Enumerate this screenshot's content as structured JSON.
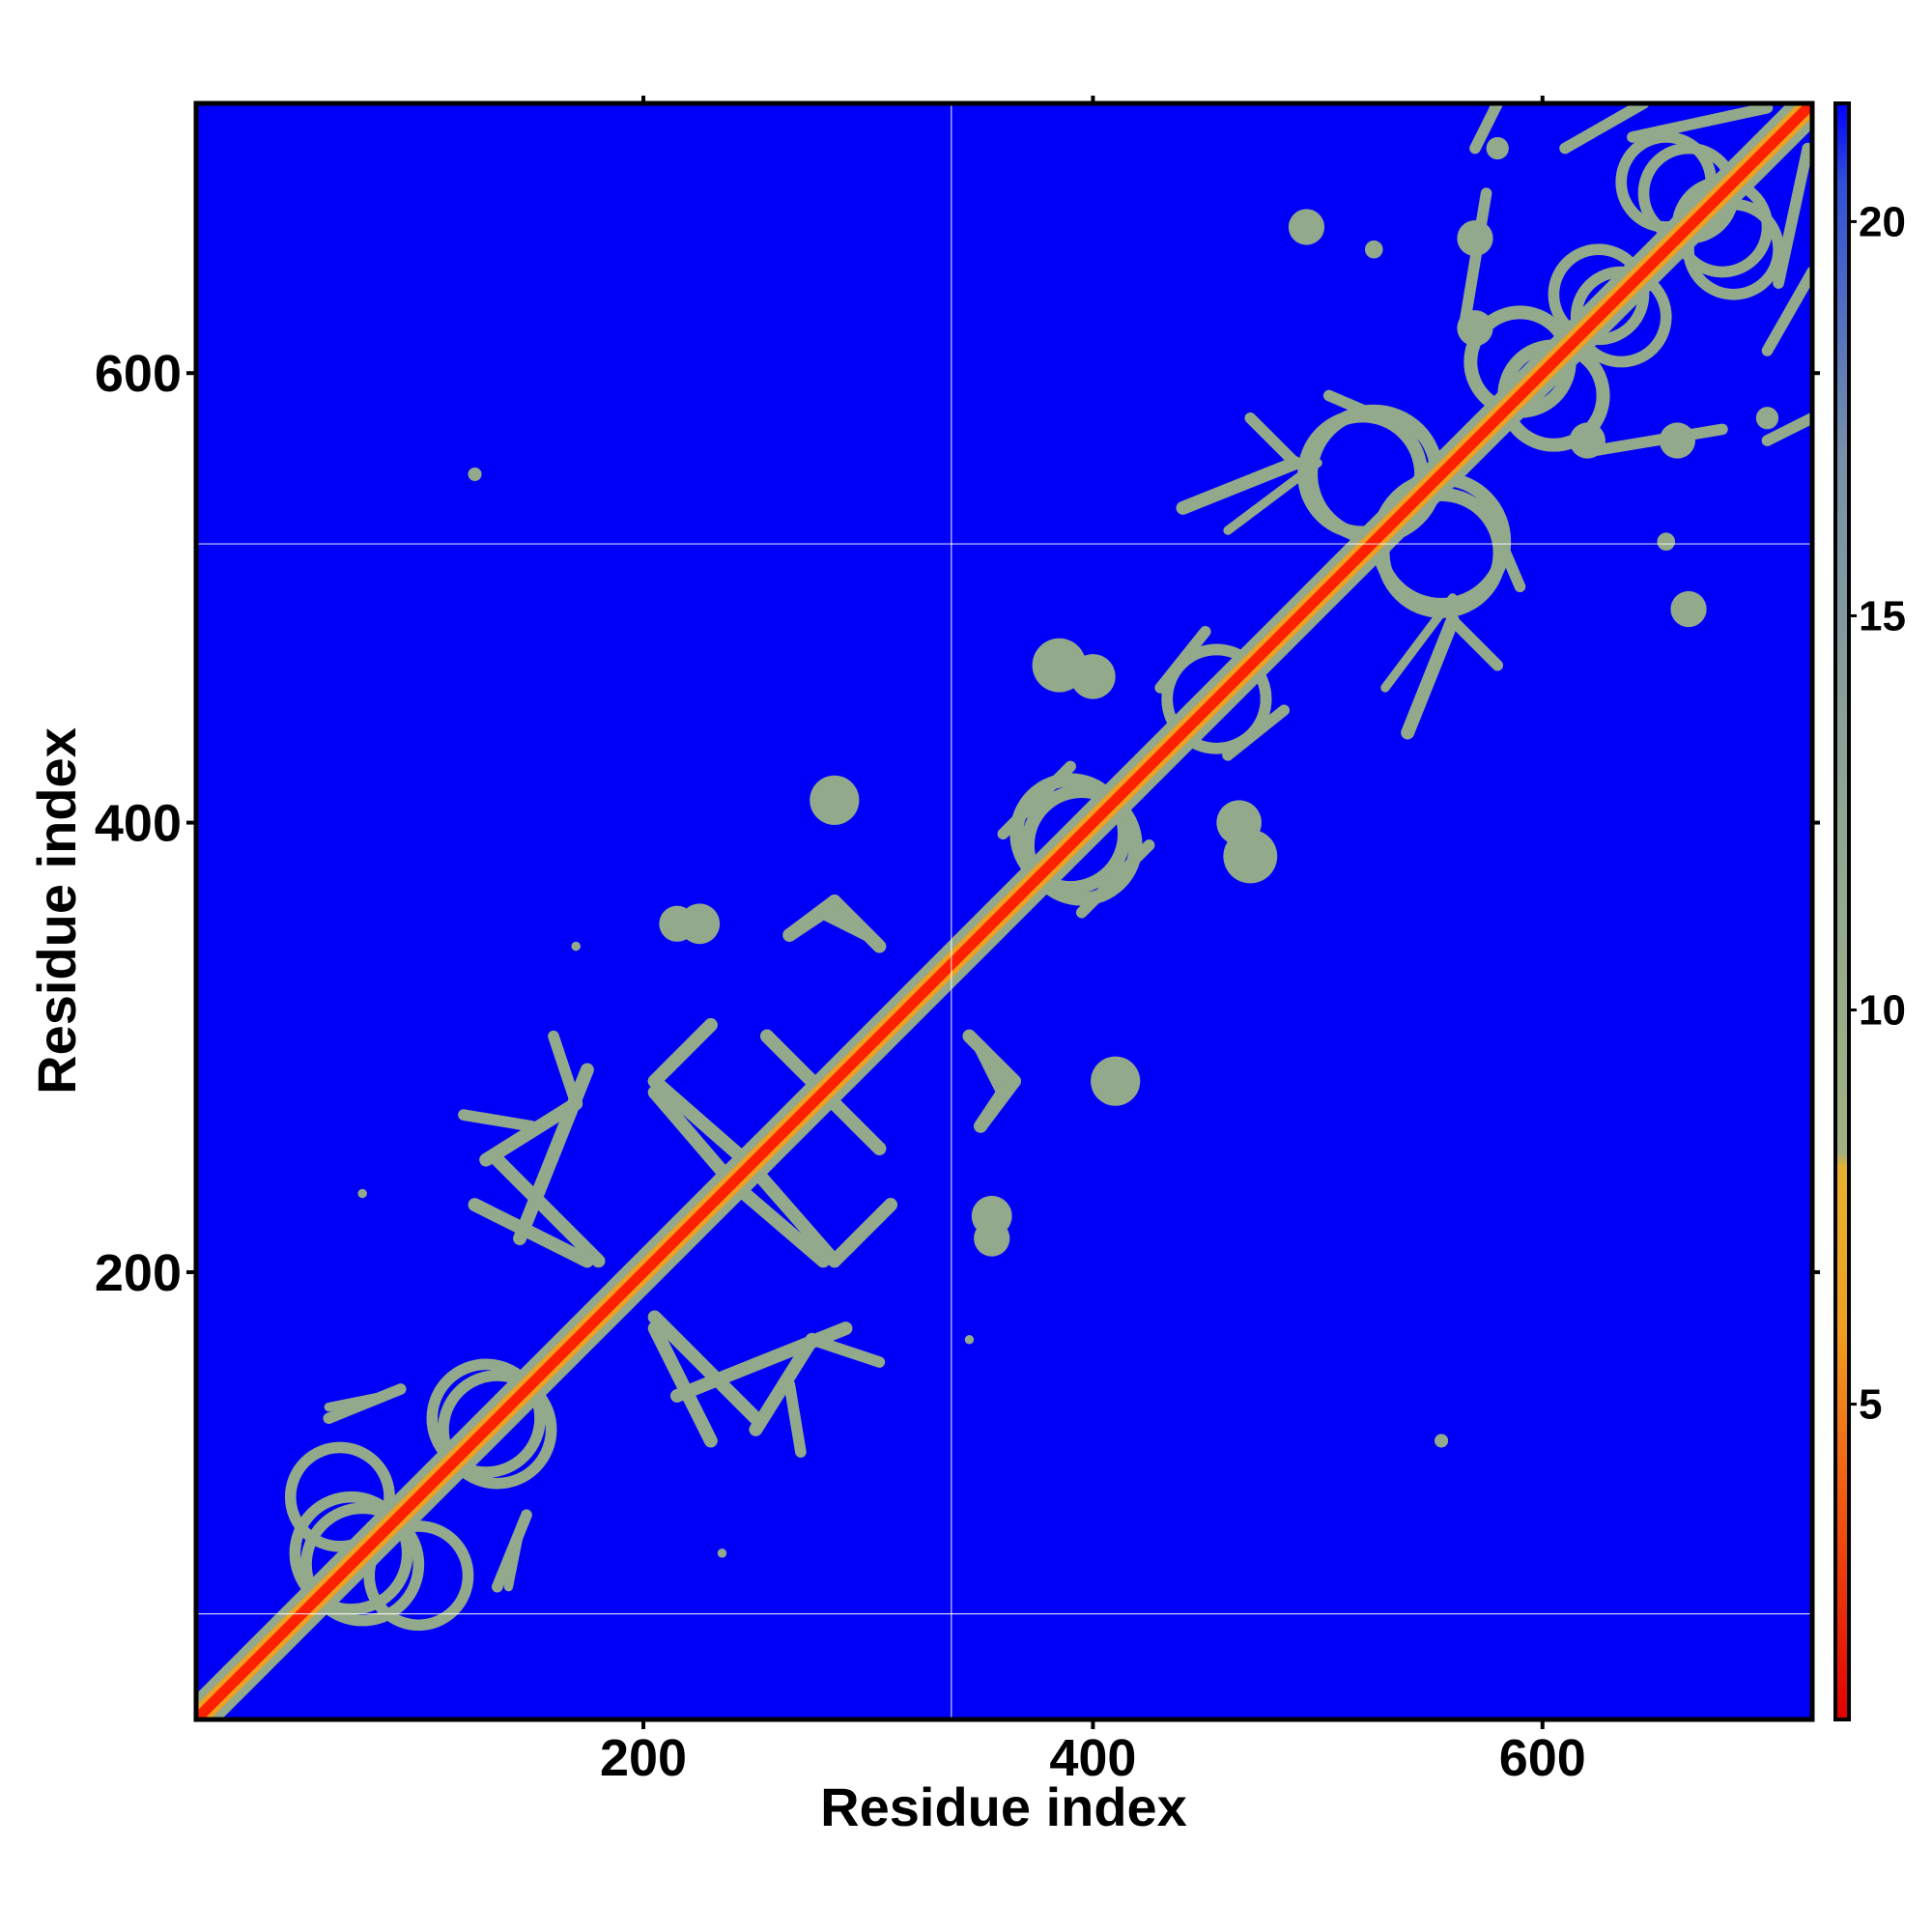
{
  "chart_data": {
    "type": "heatmap",
    "title": "",
    "xlabel": "Residue index",
    "ylabel": "Residue index",
    "xlim": [
      1,
      720
    ],
    "ylim": [
      1,
      720
    ],
    "x_ticks": [
      200,
      400,
      600
    ],
    "y_ticks": [
      200,
      400,
      600
    ],
    "x_tick_labels": [
      "200",
      "400",
      "600"
    ],
    "y_tick_labels": [
      "200",
      "400",
      "600"
    ],
    "colorbar": {
      "range": [
        1,
        21.5
      ],
      "ticks": [
        5,
        10,
        15,
        20
      ],
      "tick_labels": [
        "5",
        "10",
        "15",
        "20"
      ],
      "stops": [
        {
          "value": 1,
          "color": "#e00000"
        },
        {
          "value": 3.5,
          "color": "#f05010"
        },
        {
          "value": 6,
          "color": "#f0a020"
        },
        {
          "value": 8,
          "color": "#e8b030"
        },
        {
          "value": 8.2,
          "color": "#a0b080"
        },
        {
          "value": 12,
          "color": "#90a890"
        },
        {
          "value": 17,
          "color": "#7890a8"
        },
        {
          "value": 20.5,
          "color": "#3050d8"
        },
        {
          "value": 21.5,
          "color": "#0000ff"
        }
      ]
    },
    "background_color": "#0000f8",
    "contact_color": "#93a98b",
    "core_color": "#ff2000",
    "reference_lines": {
      "x": [
        337
      ],
      "y": [
        48,
        524
      ]
    },
    "diagonal_band_halfwidth": 8,
    "contact_features": [
      {
        "kind": "ring",
        "cx": 70,
        "cy": 75,
        "r": 25,
        "thickness": 5
      },
      {
        "kind": "ring",
        "cx": 100,
        "cy": 65,
        "r": 22,
        "thickness": 5
      },
      {
        "kind": "ring",
        "cx": 130,
        "cy": 135,
        "r": 24,
        "thickness": 5
      },
      {
        "kind": "segment",
        "x1": 135,
        "y1": 60,
        "x2": 148,
        "y2": 92,
        "thickness": 5
      },
      {
        "kind": "segment",
        "x1": 60,
        "y1": 140,
        "x2": 85,
        "y2": 145,
        "thickness": 4
      },
      {
        "kind": "segment",
        "x1": 145,
        "y1": 215,
        "x2": 175,
        "y2": 290,
        "thickness": 6
      },
      {
        "kind": "segment",
        "x1": 135,
        "y1": 250,
        "x2": 180,
        "y2": 205,
        "thickness": 6
      },
      {
        "kind": "segment",
        "x1": 120,
        "y1": 270,
        "x2": 150,
        "y2": 265,
        "thickness": 5
      },
      {
        "kind": "segment",
        "x1": 205,
        "y1": 175,
        "x2": 230,
        "y2": 125,
        "thickness": 6
      },
      {
        "kind": "segment",
        "x1": 250,
        "y1": 130,
        "x2": 275,
        "y2": 170,
        "thickness": 6
      },
      {
        "kind": "segment",
        "x1": 275,
        "y1": 170,
        "x2": 305,
        "y2": 160,
        "thickness": 5
      },
      {
        "kind": "segment",
        "x1": 205,
        "y1": 280,
        "x2": 235,
        "y2": 245,
        "thickness": 6
      },
      {
        "kind": "segment",
        "x1": 210,
        "y1": 290,
        "x2": 230,
        "y2": 310,
        "thickness": 6
      },
      {
        "kind": "segment",
        "x1": 250,
        "y1": 245,
        "x2": 285,
        "y2": 205,
        "thickness": 6
      },
      {
        "kind": "segment",
        "x1": 285,
        "y1": 205,
        "x2": 310,
        "y2": 230,
        "thickness": 6
      },
      {
        "kind": "segment",
        "x1": 255,
        "y1": 305,
        "x2": 305,
        "y2": 255,
        "thickness": 6
      },
      {
        "kind": "segment",
        "x1": 265,
        "y1": 350,
        "x2": 285,
        "y2": 365,
        "thickness": 6
      },
      {
        "kind": "segment",
        "x1": 285,
        "y1": 365,
        "x2": 305,
        "y2": 345,
        "thickness": 6
      },
      {
        "kind": "blob",
        "cx": 225,
        "cy": 355,
        "r": 9
      },
      {
        "kind": "blob",
        "cx": 285,
        "cy": 410,
        "r": 11
      },
      {
        "kind": "segment",
        "x1": 350,
        "y1": 300,
        "x2": 360,
        "y2": 280,
        "thickness": 6
      },
      {
        "kind": "segment",
        "x1": 350,
        "y1": 265,
        "x2": 360,
        "y2": 280,
        "thickness": 6
      },
      {
        "kind": "blob",
        "cx": 355,
        "cy": 215,
        "r": 8
      },
      {
        "kind": "blob",
        "cx": 410,
        "cy": 285,
        "r": 9
      },
      {
        "kind": "ring",
        "cx": 390,
        "cy": 395,
        "r": 24,
        "thickness": 6
      },
      {
        "kind": "segment",
        "x1": 395,
        "y1": 360,
        "x2": 425,
        "y2": 390,
        "thickness": 5
      },
      {
        "kind": "blob",
        "cx": 470,
        "cy": 385,
        "r": 12
      },
      {
        "kind": "blob",
        "cx": 400,
        "cy": 465,
        "r": 10
      },
      {
        "kind": "ring",
        "cx": 455,
        "cy": 455,
        "r": 22,
        "thickness": 5
      },
      {
        "kind": "segment",
        "x1": 460,
        "y1": 430,
        "x2": 485,
        "y2": 450,
        "thickness": 5
      },
      {
        "kind": "ring",
        "cx": 520,
        "cy": 555,
        "r": 26,
        "thickness": 6
      },
      {
        "kind": "ring",
        "cx": 555,
        "cy": 525,
        "r": 28,
        "thickness": 6
      },
      {
        "kind": "segment",
        "x1": 540,
        "y1": 440,
        "x2": 560,
        "y2": 490,
        "thickness": 6
      },
      {
        "kind": "segment",
        "x1": 560,
        "y1": 490,
        "x2": 580,
        "y2": 470,
        "thickness": 5
      },
      {
        "kind": "segment",
        "x1": 575,
        "y1": 540,
        "x2": 590,
        "y2": 505,
        "thickness": 5
      },
      {
        "kind": "ring",
        "cx": 590,
        "cy": 605,
        "r": 22,
        "thickness": 6
      },
      {
        "kind": "segment",
        "x1": 460,
        "y1": 530,
        "x2": 500,
        "y2": 560,
        "thickness": 4
      },
      {
        "kind": "blob",
        "cx": 495,
        "cy": 665,
        "r": 8
      },
      {
        "kind": "segment",
        "x1": 565,
        "y1": 620,
        "x2": 575,
        "y2": 680,
        "thickness": 5
      },
      {
        "kind": "segment",
        "x1": 570,
        "y1": 700,
        "x2": 580,
        "y2": 720,
        "thickness": 5
      },
      {
        "kind": "ring",
        "cx": 655,
        "cy": 685,
        "r": 20,
        "thickness": 5
      },
      {
        "kind": "ring",
        "cx": 680,
        "cy": 665,
        "r": 20,
        "thickness": 5
      },
      {
        "kind": "ring",
        "cx": 635,
        "cy": 625,
        "r": 20,
        "thickness": 5
      },
      {
        "kind": "segment",
        "x1": 705,
        "y1": 640,
        "x2": 718,
        "y2": 700,
        "thickness": 5
      },
      {
        "kind": "segment",
        "x1": 610,
        "y1": 700,
        "x2": 645,
        "y2": 720,
        "thickness": 5
      },
      {
        "kind": "blob",
        "cx": 620,
        "cy": 570,
        "r": 8
      },
      {
        "kind": "blob",
        "cx": 660,
        "cy": 570,
        "r": 8
      },
      {
        "kind": "blob",
        "cx": 665,
        "cy": 495,
        "r": 7
      },
      {
        "kind": "blob",
        "cx": 700,
        "cy": 580,
        "r": 5
      },
      {
        "kind": "blob",
        "cx": 655,
        "cy": 525,
        "r": 4
      },
      {
        "kind": "blob",
        "cx": 555,
        "cy": 125,
        "r": 3
      },
      {
        "kind": "blob",
        "cx": 125,
        "cy": 555,
        "r": 3
      },
      {
        "kind": "blob",
        "cx": 75,
        "cy": 235,
        "r": 2
      },
      {
        "kind": "blob",
        "cx": 235,
        "cy": 75,
        "r": 2
      },
      {
        "kind": "blob",
        "cx": 345,
        "cy": 170,
        "r": 2
      },
      {
        "kind": "blob",
        "cx": 170,
        "cy": 345,
        "r": 2
      }
    ]
  }
}
